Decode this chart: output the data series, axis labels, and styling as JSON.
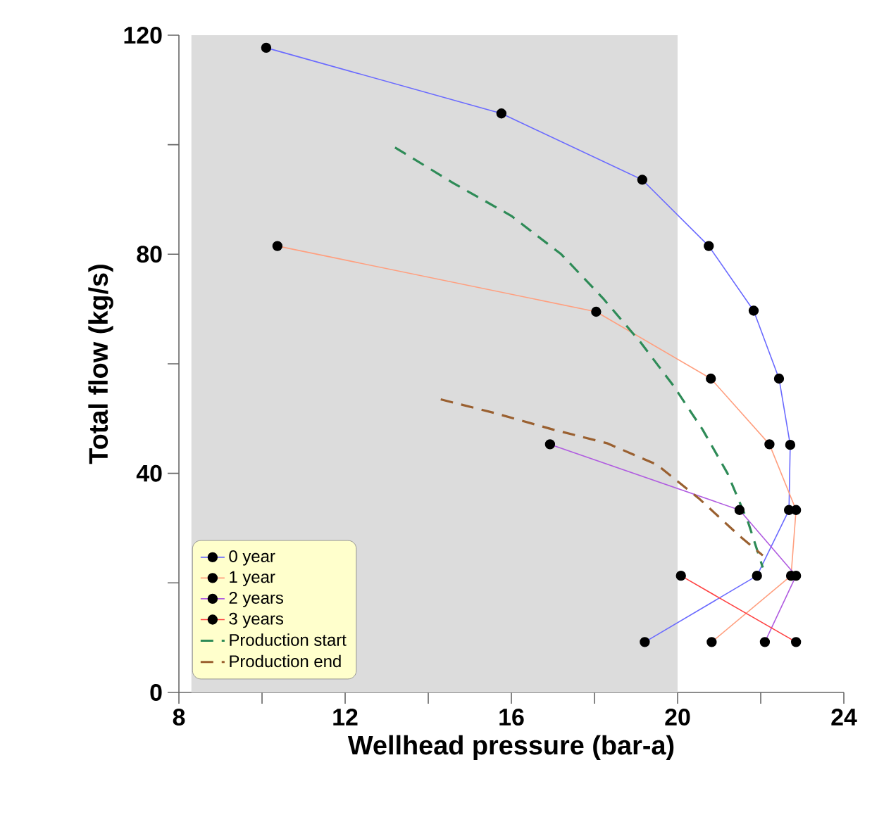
{
  "chart_data": {
    "type": "line",
    "xlabel": "Wellhead pressure (bar-a)",
    "ylabel": "Total flow (kg/s)",
    "xlim": [
      8,
      24
    ],
    "ylim": [
      0,
      120
    ],
    "xticks": [
      8,
      {
        "value": 10,
        "label": null
      },
      12,
      {
        "value": 14,
        "label": null
      },
      16,
      {
        "value": 18,
        "label": null
      },
      20,
      {
        "value": 22,
        "label": null
      },
      24
    ],
    "yticks": [
      0,
      {
        "value": 20,
        "label": null
      },
      40,
      {
        "value": 60,
        "label": null
      },
      80,
      {
        "value": 100,
        "label": null
      },
      120
    ],
    "legend": "bottom left",
    "grid": false,
    "bands": [
      {
        "axis": "x",
        "from": 8.3,
        "to": 20,
        "color": "#dcdcdc"
      }
    ],
    "series": [
      {
        "name": "0 year",
        "color": "#6a6aff",
        "marker": "circle",
        "line_style": "solid",
        "x": [
          10.1,
          15.76,
          19.15,
          20.75,
          21.83,
          22.44,
          22.71,
          22.68,
          21.91,
          19.21
        ],
        "values": [
          117.7,
          105.7,
          93.6,
          81.5,
          69.7,
          57.3,
          45.2,
          33.3,
          21.3,
          9.2
        ]
      },
      {
        "name": "1 year",
        "color": "#ff9f7f",
        "marker": "circle",
        "line_style": "solid",
        "x": [
          10.37,
          18.04,
          20.8,
          22.21,
          22.85,
          22.73,
          20.82
        ],
        "values": [
          81.5,
          69.5,
          57.3,
          45.3,
          33.3,
          21.3,
          9.2
        ]
      },
      {
        "name": "2 years",
        "color": "#b05ce0",
        "marker": "circle",
        "line_style": "solid",
        "x": [
          16.93,
          21.49,
          22.85,
          22.1
        ],
        "values": [
          45.3,
          33.3,
          21.3,
          9.2
        ]
      },
      {
        "name": "3 years",
        "color": "#ff4040",
        "marker": "circle",
        "line_style": "solid",
        "x": [
          20.08,
          22.85
        ],
        "values": [
          21.3,
          9.2
        ]
      },
      {
        "name": "Production start",
        "color": "#2e8b57",
        "marker": "none",
        "line_style": "dashed",
        "x": [
          13.2,
          14.6,
          16.0,
          17.2,
          18.2,
          19.1,
          19.9,
          20.6,
          21.2,
          21.7,
          22.05
        ],
        "values": [
          99.5,
          93,
          87,
          80,
          72,
          64,
          56,
          48,
          40,
          31,
          22.8
        ]
      },
      {
        "name": "Production end",
        "color": "#9a6030",
        "marker": "none",
        "line_style": "dashed",
        "x": [
          14.3,
          15.6,
          17.0,
          18.3,
          19.5,
          20.5,
          21.5,
          22.05
        ],
        "values": [
          53.5,
          51,
          48,
          45.5,
          41.6,
          35.5,
          28.5,
          25
        ]
      }
    ]
  }
}
